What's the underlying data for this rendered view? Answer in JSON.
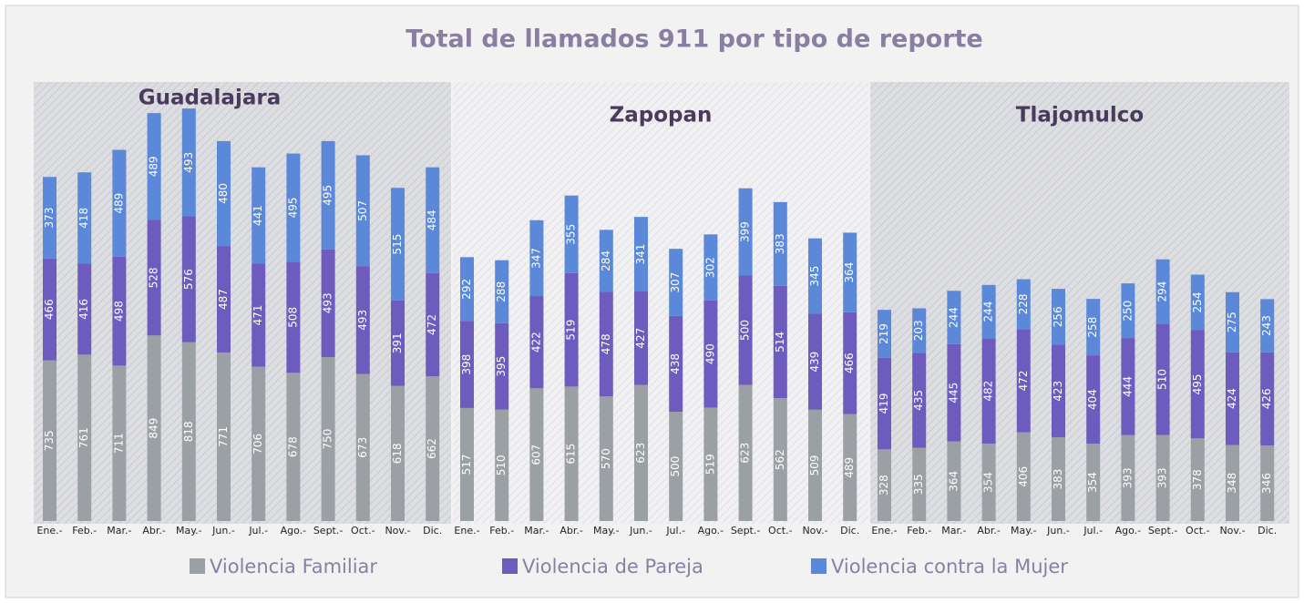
{
  "chart_data": {
    "type": "stacked_bar",
    "title": "Total de llamados 911 por tipo de reporte",
    "categories": [
      "Ene.-",
      "Feb.-",
      "Mar.-",
      "Abr.-",
      "May.-",
      "Jun.-",
      "Jul.-",
      "Ago.-",
      "Sept.-",
      "Oct.-",
      "Nov.-",
      "Dic."
    ],
    "legend": [
      {
        "name": "Violencia Familiar",
        "color": "#9aa0a4"
      },
      {
        "name": "Violencia de Pareja",
        "color": "#6d5cbd"
      },
      {
        "name": "Violencia contra la Mujer",
        "color": "#5b88d8"
      }
    ],
    "panels": [
      {
        "title": "Guadalajara",
        "series": [
          {
            "values": [
              735,
              761,
              711,
              849,
              818,
              771,
              706,
              678,
              750,
              673,
              618,
              662
            ]
          },
          {
            "values": [
              466,
              416,
              498,
              528,
              576,
              487,
              471,
              508,
              493,
              493,
              391,
              472
            ]
          },
          {
            "values": [
              373,
              418,
              489,
              489,
              493,
              480,
              441,
              495,
              495,
              507,
              515,
              484
            ]
          }
        ]
      },
      {
        "title": "Zapopan",
        "series": [
          {
            "values": [
              517,
              510,
              607,
              615,
              570,
              623,
              500,
              519,
              623,
              562,
              509,
              489
            ]
          },
          {
            "values": [
              398,
              395,
              422,
              519,
              478,
              427,
              438,
              490,
              500,
              514,
              439,
              466
            ]
          },
          {
            "values": [
              292,
              288,
              347,
              355,
              284,
              341,
              307,
              302,
              399,
              383,
              345,
              364
            ]
          }
        ]
      },
      {
        "title": "Tlajomulco",
        "series": [
          {
            "values": [
              328,
              335,
              364,
              354,
              406,
              383,
              354,
              393,
              393,
              378,
              348,
              346
            ]
          },
          {
            "values": [
              419,
              435,
              445,
              482,
              472,
              423,
              404,
              444,
              510,
              495,
              424,
              426
            ]
          },
          {
            "values": [
              219,
              203,
              244,
              244,
              228,
              256,
              258,
              250,
              294,
              254,
              275,
              243
            ]
          }
        ]
      }
    ]
  }
}
